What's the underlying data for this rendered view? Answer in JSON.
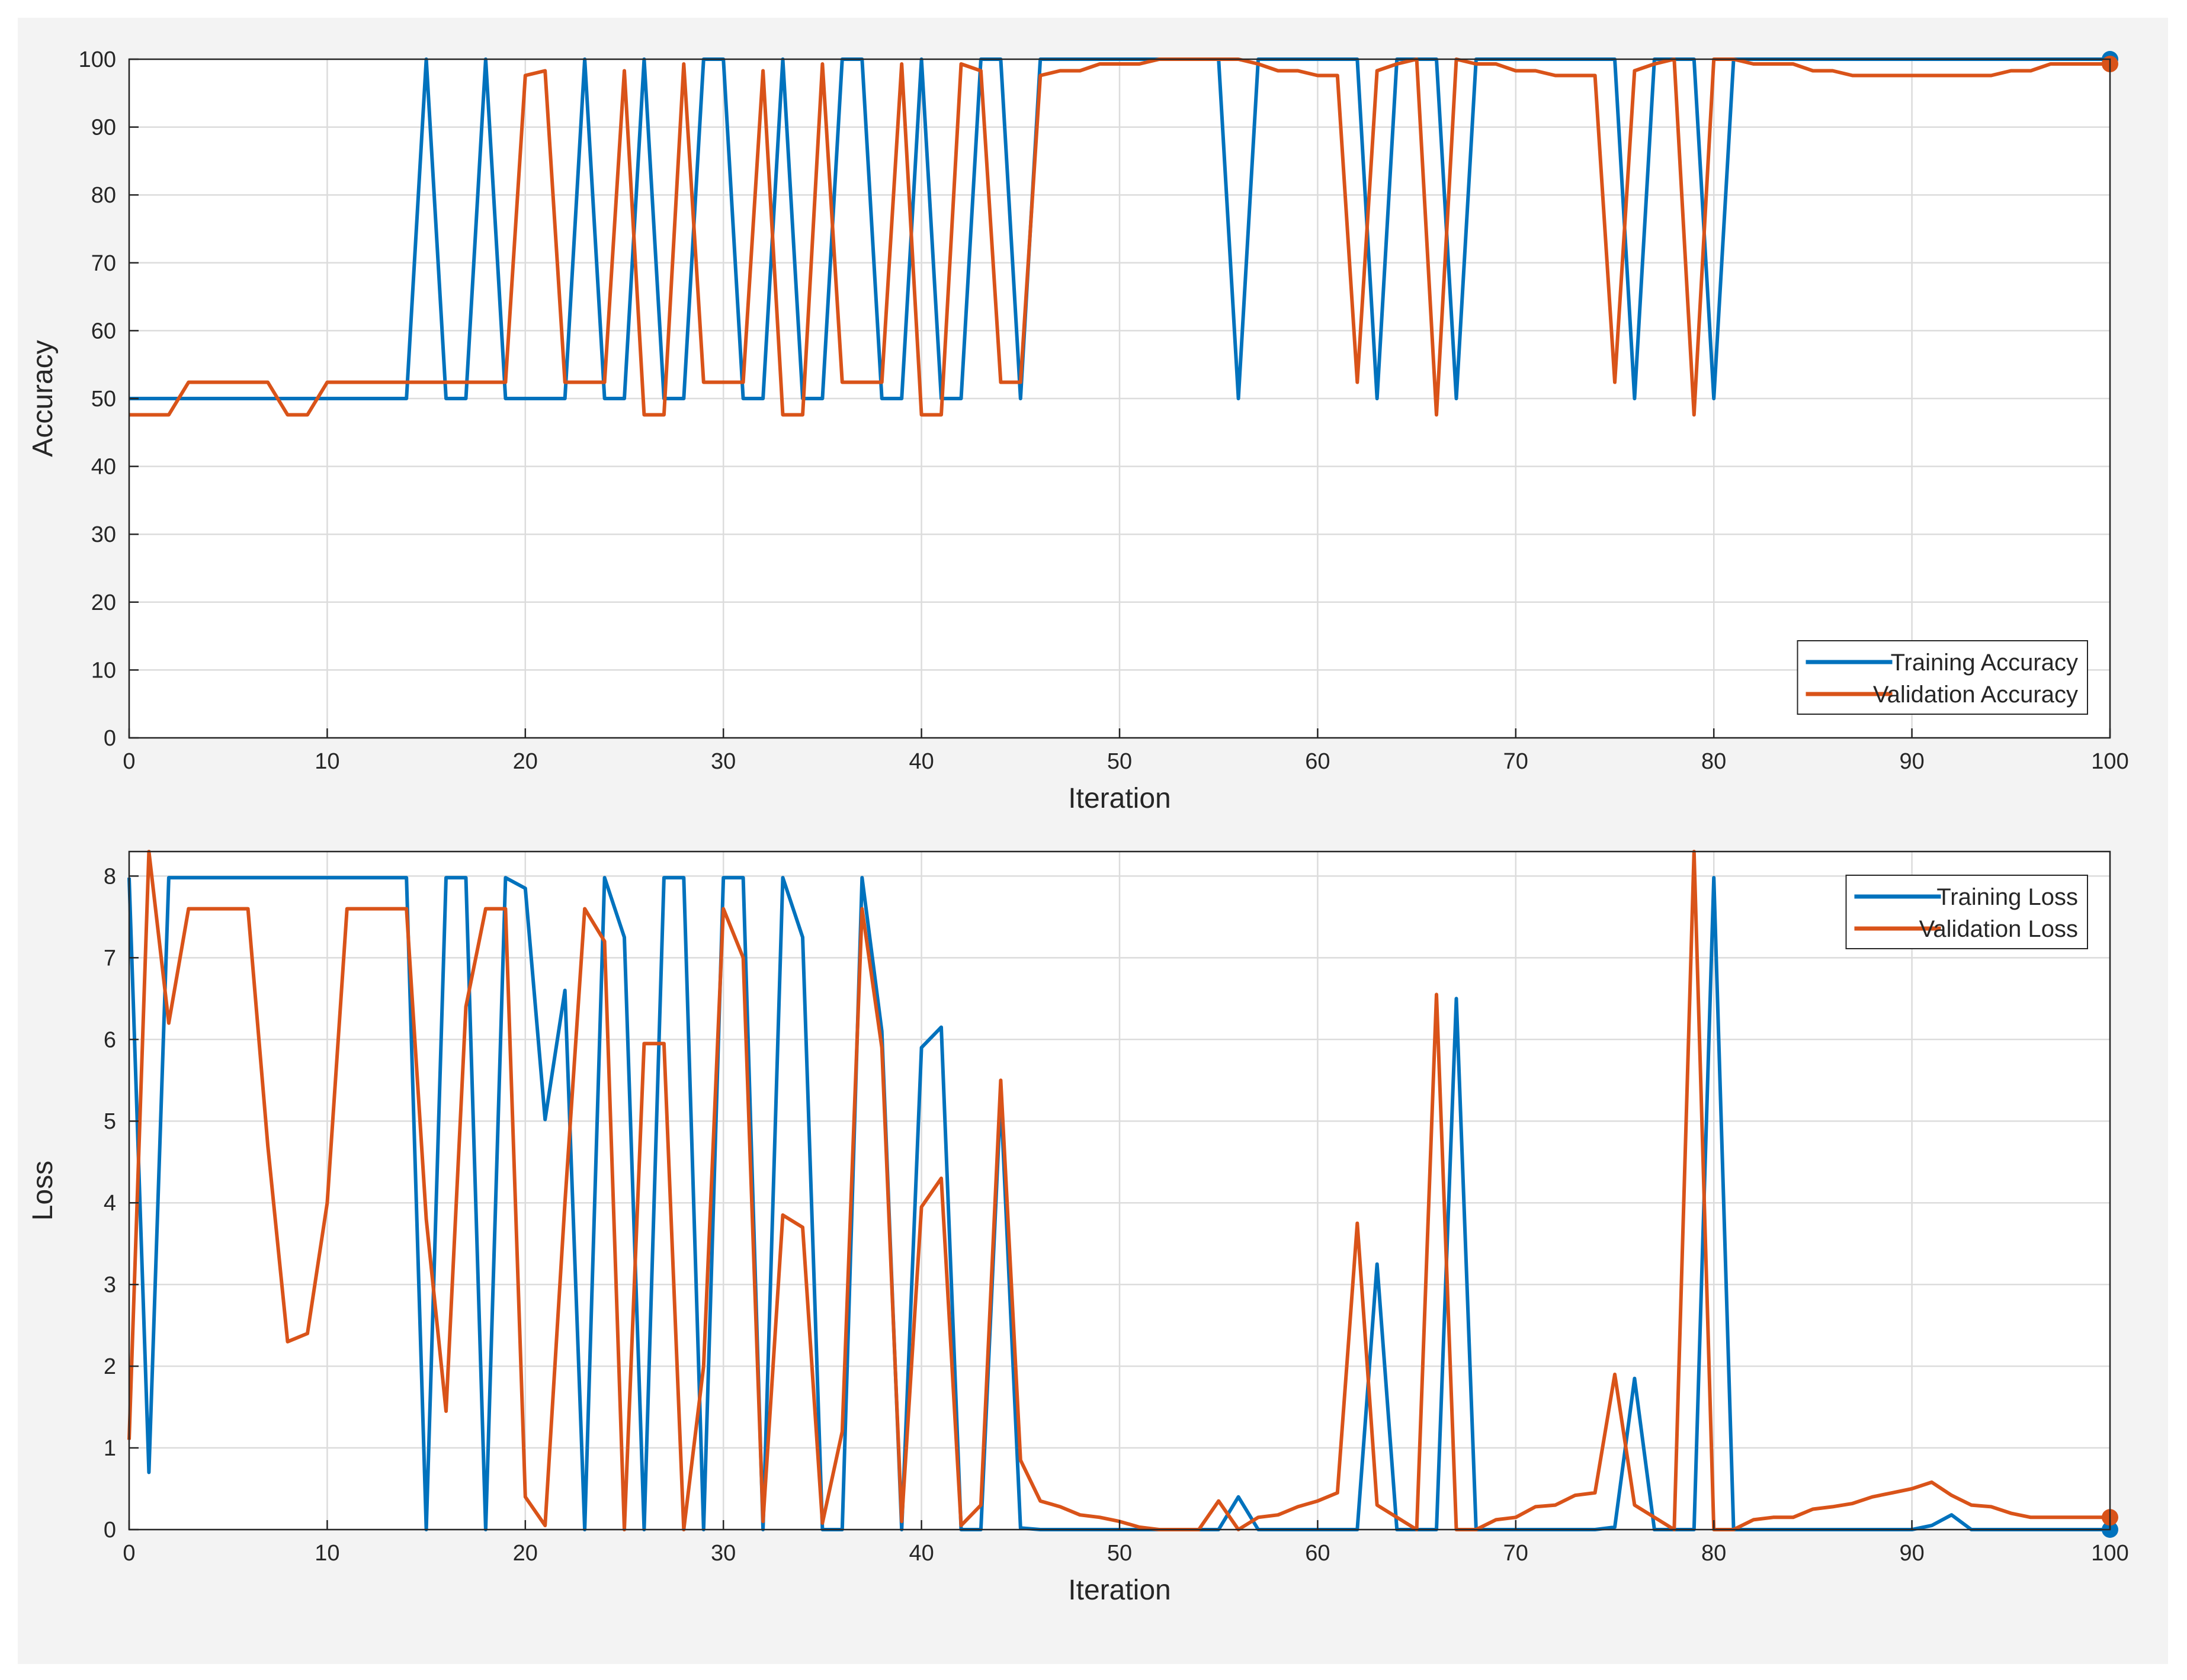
{
  "colors": {
    "training": "#0072bd",
    "validation": "#d95319",
    "figure_background": "#f3f3f3",
    "plot_background": "#ffffff",
    "grid": "#dcdcdc"
  },
  "chart_data": [
    {
      "type": "line",
      "xlabel": "Iteration",
      "ylabel": "Accuracy",
      "xlim": [
        0,
        100
      ],
      "ylim": [
        0,
        100
      ],
      "xticks": [
        0,
        10,
        20,
        30,
        40,
        50,
        60,
        70,
        80,
        90,
        100
      ],
      "yticks": [
        0,
        10,
        20,
        30,
        40,
        50,
        60,
        70,
        80,
        90,
        100
      ],
      "grid": true,
      "legend_position": "bottom-right",
      "series": [
        {
          "name": "Training Accuracy",
          "color": "#0072bd",
          "x": [
            0,
            1,
            2,
            3,
            4,
            5,
            6,
            7,
            8,
            9,
            10,
            11,
            12,
            13,
            14,
            15,
            16,
            17,
            18,
            19,
            20,
            21,
            22,
            23,
            24,
            25,
            26,
            27,
            28,
            29,
            30,
            31,
            32,
            33,
            34,
            35,
            36,
            37,
            38,
            39,
            40,
            41,
            42,
            43,
            44,
            45,
            46,
            47,
            48,
            49,
            50,
            51,
            52,
            53,
            54,
            55,
            56,
            57,
            58,
            59,
            60,
            61,
            62,
            63,
            64,
            65,
            66,
            67,
            68,
            69,
            70,
            71,
            72,
            73,
            74,
            75,
            76,
            77,
            78,
            79,
            80,
            81,
            82,
            83,
            84,
            85,
            86,
            87,
            88,
            89,
            90,
            91,
            92,
            93,
            94,
            95,
            96,
            97,
            98,
            99,
            100
          ],
          "values": [
            50,
            50,
            50,
            50,
            50,
            50,
            50,
            50,
            50,
            50,
            50,
            50,
            50,
            50,
            50,
            100,
            50,
            50,
            100,
            50,
            50,
            50,
            50,
            100,
            50,
            50,
            100,
            50,
            50,
            100,
            100,
            50,
            50,
            100,
            50,
            50,
            100,
            100,
            50,
            50,
            100,
            50,
            50,
            100,
            100,
            50,
            100,
            100,
            100,
            100,
            100,
            100,
            100,
            100,
            100,
            100,
            50,
            100,
            100,
            100,
            100,
            100,
            100,
            50,
            100,
            100,
            100,
            50,
            100,
            100,
            100,
            100,
            100,
            100,
            100,
            100,
            50,
            100,
            100,
            100,
            50,
            100,
            100,
            100,
            100,
            100,
            100,
            100,
            100,
            100,
            100,
            100,
            100,
            100,
            100,
            100,
            100,
            100,
            100,
            100,
            100
          ],
          "end_marker": true
        },
        {
          "name": "Validation Accuracy",
          "color": "#d95319",
          "x": [
            0,
            1,
            2,
            3,
            4,
            5,
            6,
            7,
            8,
            9,
            10,
            11,
            12,
            13,
            14,
            15,
            16,
            17,
            18,
            19,
            20,
            21,
            22,
            23,
            24,
            25,
            26,
            27,
            28,
            29,
            30,
            31,
            32,
            33,
            34,
            35,
            36,
            37,
            38,
            39,
            40,
            41,
            42,
            43,
            44,
            45,
            46,
            47,
            48,
            49,
            50,
            51,
            52,
            53,
            54,
            55,
            56,
            57,
            58,
            59,
            60,
            61,
            62,
            63,
            64,
            65,
            66,
            67,
            68,
            69,
            70,
            71,
            72,
            73,
            74,
            75,
            76,
            77,
            78,
            79,
            80,
            81,
            82,
            83,
            84,
            85,
            86,
            87,
            88,
            89,
            90,
            91,
            92,
            93,
            94,
            95,
            96,
            97,
            98,
            99,
            100
          ],
          "values": [
            47.6,
            47.6,
            47.6,
            52.4,
            52.4,
            52.4,
            52.4,
            52.4,
            47.6,
            47.6,
            52.4,
            52.4,
            52.4,
            52.4,
            52.4,
            52.4,
            52.4,
            52.4,
            52.4,
            52.4,
            97.6,
            98.3,
            52.4,
            52.4,
            52.4,
            98.3,
            47.6,
            47.6,
            99.3,
            52.4,
            52.4,
            52.4,
            98.3,
            47.6,
            47.6,
            99.3,
            52.4,
            52.4,
            52.4,
            99.3,
            47.6,
            47.6,
            99.3,
            98.3,
            52.4,
            52.4,
            97.6,
            98.3,
            98.3,
            99.3,
            99.3,
            99.3,
            100,
            100,
            100,
            100,
            100,
            99.3,
            98.3,
            98.3,
            97.6,
            97.6,
            52.4,
            98.3,
            99.3,
            100,
            47.6,
            100,
            99.3,
            99.3,
            98.3,
            98.3,
            97.6,
            97.6,
            97.6,
            52.4,
            98.3,
            99.3,
            100,
            47.6,
            100,
            100,
            99.3,
            99.3,
            99.3,
            98.3,
            98.3,
            97.6,
            97.6,
            97.6,
            97.6,
            97.6,
            97.6,
            97.6,
            97.6,
            98.3,
            98.3,
            99.3,
            99.3,
            99.3,
            99.3
          ],
          "end_marker": true
        }
      ]
    },
    {
      "type": "line",
      "xlabel": "Iteration",
      "ylabel": "Loss",
      "xlim": [
        0,
        100
      ],
      "ylim": [
        0,
        8.3
      ],
      "xticks": [
        0,
        10,
        20,
        30,
        40,
        50,
        60,
        70,
        80,
        90,
        100
      ],
      "yticks": [
        0,
        1,
        2,
        3,
        4,
        5,
        6,
        7,
        8
      ],
      "grid": true,
      "legend_position": "top-right",
      "series": [
        {
          "name": "Training Loss",
          "color": "#0072bd",
          "x": [
            0,
            1,
            2,
            3,
            4,
            5,
            6,
            7,
            8,
            9,
            10,
            11,
            12,
            13,
            14,
            15,
            16,
            17,
            18,
            19,
            20,
            21,
            22,
            23,
            24,
            25,
            26,
            27,
            28,
            29,
            30,
            31,
            32,
            33,
            34,
            35,
            36,
            37,
            38,
            39,
            40,
            41,
            42,
            43,
            44,
            45,
            46,
            47,
            48,
            49,
            50,
            51,
            52,
            53,
            54,
            55,
            56,
            57,
            58,
            59,
            60,
            61,
            62,
            63,
            64,
            65,
            66,
            67,
            68,
            69,
            70,
            71,
            72,
            73,
            74,
            75,
            76,
            77,
            78,
            79,
            80,
            81,
            82,
            83,
            84,
            85,
            86,
            87,
            88,
            89,
            90,
            91,
            92,
            93,
            94,
            95,
            96,
            97,
            98,
            99,
            100
          ],
          "values": [
            7.98,
            0.7,
            7.98,
            7.98,
            7.98,
            7.98,
            7.98,
            7.98,
            7.98,
            7.98,
            7.98,
            7.98,
            7.98,
            7.98,
            7.98,
            0,
            7.98,
            7.98,
            0,
            7.98,
            7.85,
            5.02,
            6.6,
            0,
            7.98,
            7.25,
            0,
            7.98,
            7.98,
            0,
            7.98,
            7.98,
            0,
            7.98,
            7.25,
            0,
            0,
            7.98,
            6.1,
            0,
            5.9,
            6.15,
            0,
            0,
            5.3,
            0.02,
            0,
            0,
            0,
            0,
            0,
            0,
            0,
            0,
            0,
            0,
            0.4,
            0,
            0,
            0,
            0,
            0,
            0,
            3.25,
            0,
            0,
            0,
            6.5,
            0,
            0,
            0,
            0,
            0,
            0,
            0,
            0.03,
            1.85,
            0,
            0,
            0,
            7.98,
            0,
            0,
            0,
            0,
            0,
            0,
            0,
            0,
            0,
            0,
            0.05,
            0.18,
            0,
            0,
            0,
            0,
            0,
            0,
            0,
            0
          ],
          "end_marker": true
        },
        {
          "name": "Validation Loss",
          "color": "#d95319",
          "x": [
            0,
            1,
            2,
            3,
            4,
            5,
            6,
            7,
            8,
            9,
            10,
            11,
            12,
            13,
            14,
            15,
            16,
            17,
            18,
            19,
            20,
            21,
            22,
            23,
            24,
            25,
            26,
            27,
            28,
            29,
            30,
            31,
            32,
            33,
            34,
            35,
            36,
            37,
            38,
            39,
            40,
            41,
            42,
            43,
            44,
            45,
            46,
            47,
            48,
            49,
            50,
            51,
            52,
            53,
            54,
            55,
            56,
            57,
            58,
            59,
            60,
            61,
            62,
            63,
            64,
            65,
            66,
            67,
            68,
            69,
            70,
            71,
            72,
            73,
            74,
            75,
            76,
            77,
            78,
            79,
            80,
            81,
            82,
            83,
            84,
            85,
            86,
            87,
            88,
            89,
            90,
            91,
            92,
            93,
            94,
            95,
            96,
            97,
            98,
            99,
            100
          ],
          "values": [
            1.1,
            8.3,
            6.2,
            7.6,
            7.6,
            7.6,
            7.6,
            4.7,
            2.3,
            2.4,
            4.0,
            7.6,
            7.6,
            7.6,
            7.6,
            3.8,
            1.45,
            6.4,
            7.6,
            7.6,
            0.4,
            0.05,
            4.0,
            7.6,
            7.2,
            0,
            5.95,
            5.95,
            0,
            2.0,
            7.6,
            7.0,
            0.1,
            3.85,
            3.7,
            0.08,
            1.2,
            7.6,
            5.9,
            0.1,
            3.95,
            4.3,
            0.05,
            0.3,
            5.5,
            0.85,
            0.35,
            0.28,
            0.18,
            0.15,
            0.1,
            0.03,
            0,
            0,
            0,
            0.35,
            0,
            0.15,
            0.18,
            0.28,
            0.35,
            0.45,
            3.75,
            0.3,
            0.15,
            0,
            6.55,
            0,
            0,
            0.12,
            0.15,
            0.28,
            0.3,
            0.42,
            0.45,
            1.9,
            0.3,
            0.15,
            0,
            8.3,
            0,
            0,
            0.12,
            0.15,
            0.15,
            0.25,
            0.28,
            0.32,
            0.4,
            0.45,
            0.5,
            0.58,
            0.42,
            0.3,
            0.28,
            0.2,
            0.15,
            0.15,
            0.15,
            0.15,
            0.15
          ],
          "end_marker": true
        }
      ]
    }
  ]
}
